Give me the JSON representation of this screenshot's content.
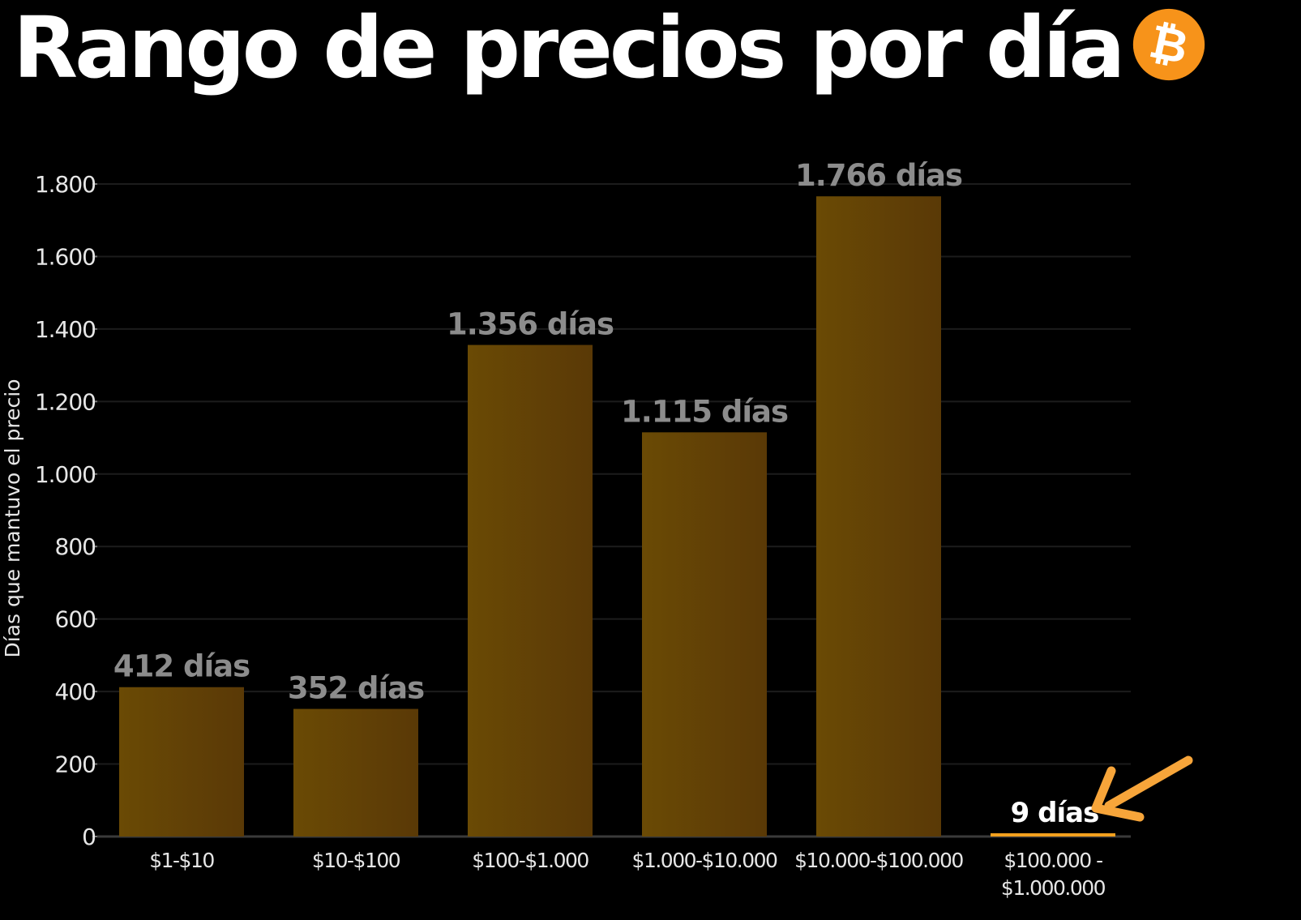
{
  "page": {
    "title": "Rango de precios por día",
    "logo_icon": "bitcoin-icon",
    "annotation_icon": "arrow-pointing-icon"
  },
  "colors": {
    "background": "#000000",
    "bar_left": "#6a4a05",
    "bar_right": "#5a3906",
    "highlight_bar": "#f2a01e",
    "arrow": "#f7a53a",
    "bitcoin": "#f7931a",
    "label_gray": "#8c8c8c",
    "axis_text": "#e6e6e6"
  },
  "chart_data": {
    "type": "bar",
    "title": "Rango de precios por día",
    "xlabel": "",
    "ylabel": "Días que mantuvo el precio",
    "ylim": [
      0,
      1800
    ],
    "yticks": [
      0,
      200,
      400,
      600,
      800,
      1000,
      1200,
      1400,
      1600,
      1800
    ],
    "ytick_labels": [
      "0",
      "200",
      "400",
      "600",
      "800",
      "1.000",
      "1.200",
      "1.400",
      "1.600",
      "1.800"
    ],
    "grid": true,
    "categories": [
      [
        "$1-$10"
      ],
      [
        "$10-$100"
      ],
      [
        "$100-$1.000"
      ],
      [
        "$1.000-$10.000"
      ],
      [
        "$10.000-$100.000"
      ],
      [
        "$100.000 -",
        "$1.000.000"
      ]
    ],
    "values": [
      412,
      352,
      1356,
      1115,
      1766,
      9
    ],
    "data_labels": [
      "412 días",
      "352 días",
      "1.356 días",
      "1.115 días",
      "1.766 días",
      "9 días"
    ],
    "highlight_index": 5
  }
}
